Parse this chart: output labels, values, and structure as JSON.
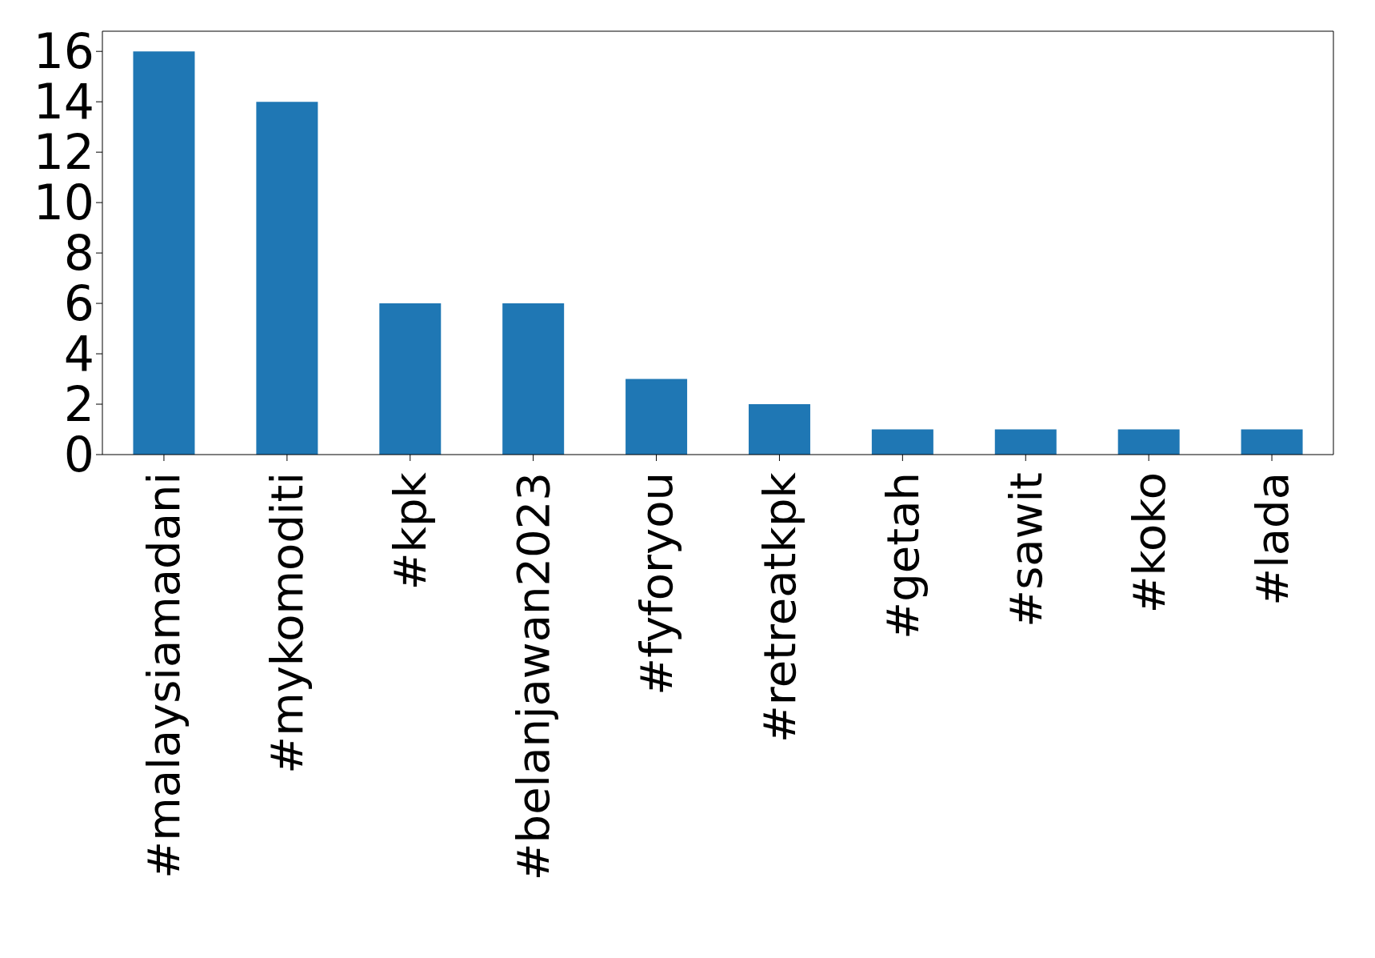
{
  "chart_data": {
    "type": "bar",
    "categories": [
      "#malaysiamadani",
      "#mykomoditi",
      "#kpk",
      "#belanjawan2023",
      "#fyforyou",
      "#retreatkpk",
      "#getah",
      "#sawit",
      "#koko",
      "#lada"
    ],
    "values": [
      16,
      14,
      6,
      6,
      3,
      2,
      1,
      1,
      1,
      1
    ],
    "color": "#1f77b4",
    "ylim": [
      0,
      16.8
    ],
    "yticks": [
      0,
      2,
      4,
      6,
      8,
      10,
      12,
      14,
      16
    ],
    "grid": false
  }
}
